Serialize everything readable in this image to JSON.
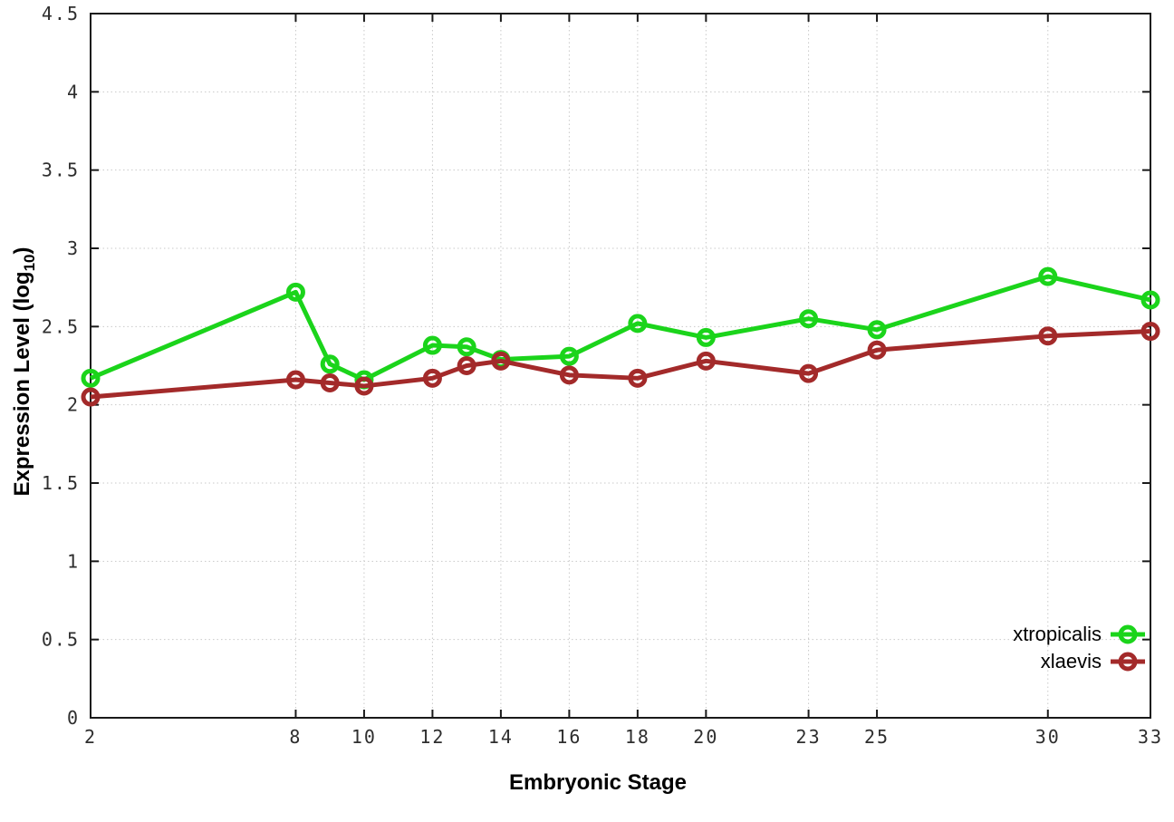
{
  "chart_data": {
    "type": "line",
    "title": "",
    "xlabel": "Embryonic Stage",
    "ylabel": "Expression Level (log10)",
    "ylabel_parts": {
      "main": "Expression Level (log",
      "sub": "10",
      "close": ")"
    },
    "xlim": [
      2,
      33
    ],
    "ylim": [
      0,
      4.5
    ],
    "x_ticks": [
      "2",
      "8",
      "10",
      "12",
      "14",
      "16",
      "18",
      "20",
      "23",
      "25",
      "30",
      "33"
    ],
    "y_ticks": [
      "0",
      "0.5",
      "1",
      "1.5",
      "2",
      "2.5",
      "3",
      "3.5",
      "4",
      "4.5"
    ],
    "grid": true,
    "legend_position": "bottom-right",
    "x": [
      2,
      8,
      9,
      10,
      12,
      13,
      14,
      16,
      18,
      20,
      23,
      25,
      30,
      33
    ],
    "series": [
      {
        "name": "xtropicalis",
        "color": "#1bd41b",
        "values": [
          2.17,
          2.72,
          2.26,
          2.16,
          2.38,
          2.37,
          2.29,
          2.31,
          2.52,
          2.43,
          2.55,
          2.48,
          2.82,
          2.67
        ]
      },
      {
        "name": "xlaevis",
        "color": "#a32a2a",
        "values": [
          2.05,
          2.16,
          2.14,
          2.12,
          2.17,
          2.25,
          2.28,
          2.19,
          2.17,
          2.28,
          2.2,
          2.35,
          2.44,
          2.47
        ]
      }
    ]
  },
  "colors": {
    "background": "#ffffff",
    "grid": "#c9c9c9",
    "axis": "#1a1a1a",
    "tick_text": "#2e2e2e"
  }
}
